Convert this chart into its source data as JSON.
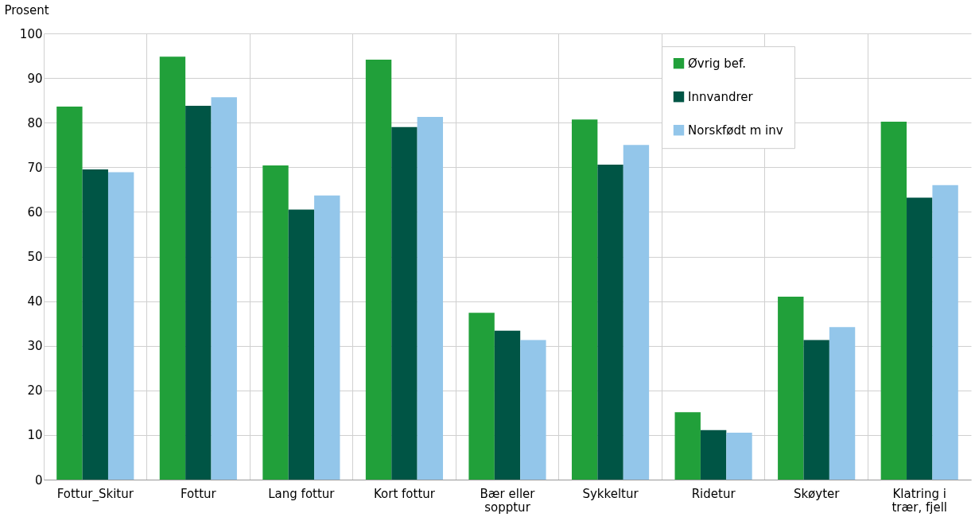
{
  "chart_data": {
    "type": "bar",
    "ylabel": "Prosent",
    "categories": [
      "Fottur_Skitur",
      "Fottur",
      "Lang fottur",
      "Kort fottur",
      "Bær eller sopptur",
      "Sykkeltur",
      "Ridetur",
      "Skøyter",
      "Klatring i trær, fjell"
    ],
    "series": [
      {
        "name": "Øvrig bef.",
        "color": "#21a03a",
        "values": [
          83.6,
          94.8,
          70.4,
          94.1,
          37.4,
          80.7,
          15.1,
          41.0,
          80.2
        ]
      },
      {
        "name": "Innvandrer",
        "color": "#005545",
        "values": [
          69.5,
          83.8,
          60.5,
          79.0,
          33.4,
          70.6,
          11.1,
          31.3,
          63.2
        ]
      },
      {
        "name": "Norskfødt m inv",
        "color": "#93c6ea",
        "values": [
          68.9,
          85.7,
          63.7,
          81.3,
          31.3,
          75.0,
          10.5,
          34.2,
          66.0
        ]
      }
    ],
    "ylim": [
      0,
      100
    ],
    "yticks": [
      0,
      10,
      20,
      30,
      40,
      50,
      60,
      70,
      80,
      90,
      100
    ],
    "grid": true,
    "legend": "top right"
  }
}
